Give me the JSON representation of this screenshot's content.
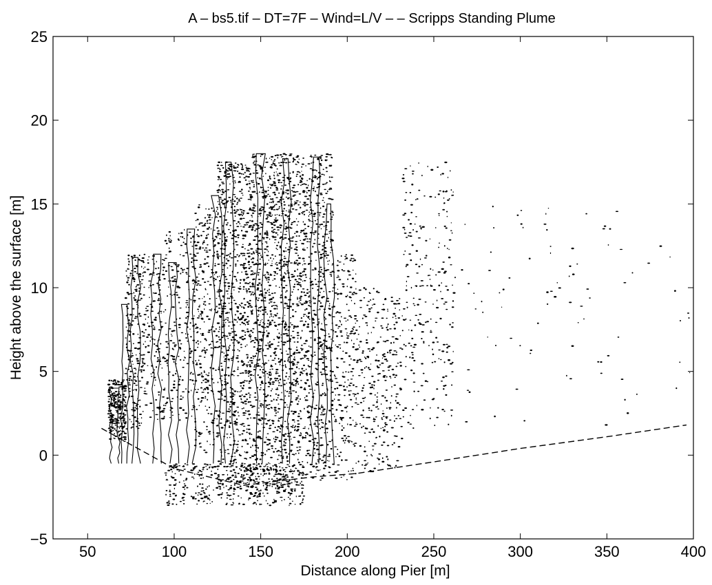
{
  "chart_data": {
    "type": "scatter",
    "title": "A – bs5.tif – DT=7F –  Wind=L/V – – Scripps Standing Plume",
    "xlabel": "Distance along Pier [m]",
    "ylabel": "Height above the surface [m]",
    "xlim": [
      30,
      400
    ],
    "ylim": [
      -5,
      25
    ],
    "xticks": [
      50,
      100,
      150,
      200,
      250,
      300,
      350,
      400
    ],
    "yticks": [
      -5,
      0,
      5,
      10,
      15,
      20,
      25
    ],
    "xtick_labels": [
      "50",
      "100",
      "150",
      "200",
      "250",
      "300",
      "350",
      "400"
    ],
    "ytick_labels": [
      "−5",
      "0",
      "5",
      "10",
      "15",
      "20",
      "25"
    ],
    "grid": false,
    "series": [
      {
        "kind": "points",
        "color": "#000000",
        "clusters": [
          {
            "x": [
              62,
              72
            ],
            "y": [
              0.8,
              4.5
            ],
            "n": 260
          },
          {
            "x": [
              72,
              82
            ],
            "y": [
              1.5,
              12
            ],
            "n": 220
          },
          {
            "x": [
              82,
              95
            ],
            "y": [
              2,
              12
            ],
            "n": 180
          },
          {
            "x": [
              95,
              112
            ],
            "y": [
              2,
              13.5
            ],
            "n": 240
          },
          {
            "x": [
              112,
              125
            ],
            "y": [
              0,
              15
            ],
            "n": 300
          },
          {
            "x": [
              125,
              145
            ],
            "y": [
              -2,
              17.5
            ],
            "n": 900
          },
          {
            "x": [
              145,
              168
            ],
            "y": [
              -2.5,
              18
            ],
            "n": 1100
          },
          {
            "x": [
              168,
              192
            ],
            "y": [
              -1.5,
              18
            ],
            "n": 900
          },
          {
            "x": [
              192,
              205
            ],
            "y": [
              -1.5,
              12
            ],
            "n": 220
          },
          {
            "x": [
              205,
              232
            ],
            "y": [
              -1,
              10
            ],
            "n": 320
          },
          {
            "x": [
              232,
              262
            ],
            "y": [
              1.5,
              17.5
            ],
            "n": 260
          },
          {
            "x": [
              262,
              400
            ],
            "y": [
              1.5,
              15
            ],
            "n": 90
          },
          {
            "x": [
              95,
              175
            ],
            "y": [
              -3,
              -0.5
            ],
            "n": 420
          }
        ]
      },
      {
        "kind": "contour",
        "color": "#000000",
        "plume_tops": [
          {
            "x": 66,
            "y": 4
          },
          {
            "x": 72,
            "y": 9
          },
          {
            "x": 78,
            "y": 11.8
          },
          {
            "x": 90,
            "y": 12
          },
          {
            "x": 100,
            "y": 11.5
          },
          {
            "x": 110,
            "y": 13.5
          },
          {
            "x": 125,
            "y": 15.5
          },
          {
            "x": 132,
            "y": 17.5
          },
          {
            "x": 150,
            "y": 18
          },
          {
            "x": 165,
            "y": 17.7
          },
          {
            "x": 182,
            "y": 17.8
          },
          {
            "x": 190,
            "y": 15
          }
        ]
      },
      {
        "kind": "surface",
        "style": "dashed",
        "color": "#000000",
        "x": [
          58,
          100,
          140,
          180,
          205,
          250,
          300,
          350,
          396
        ],
        "y": [
          1.6,
          -0.8,
          -1.8,
          -1.3,
          -1.1,
          -0.4,
          0.4,
          1.1,
          1.8
        ]
      }
    ]
  }
}
